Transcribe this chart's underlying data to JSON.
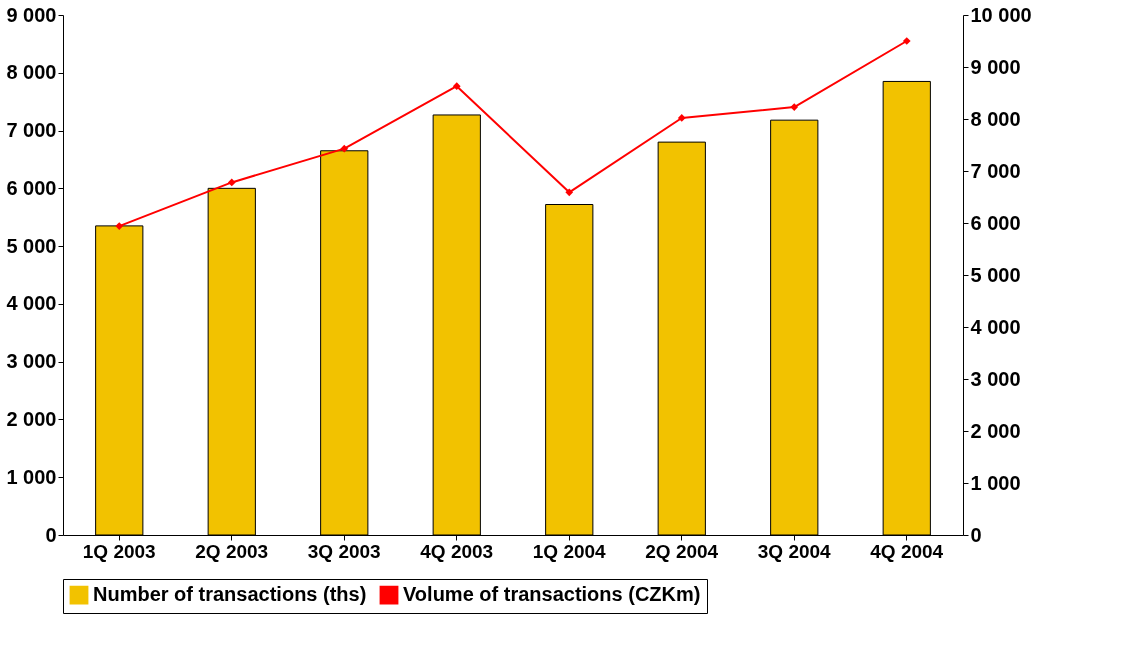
{
  "chart_data": {
    "type": "bar",
    "categories": [
      "1Q 2003",
      "2Q 2003",
      "3Q 2003",
      "4Q 2003",
      "1Q 2004",
      "2Q 2004",
      "3Q 2004",
      "4Q 2004"
    ],
    "series": [
      {
        "name": "Number of transactions (ths)",
        "color": "#f2c200",
        "values": [
          5350,
          6000,
          6650,
          7270,
          5720,
          6800,
          7180,
          7850
        ]
      },
      {
        "name": "Volume of transactions (CZKm)",
        "type": "line",
        "axis": "y2",
        "color": "#ff0000",
        "marker": "diamond",
        "values": [
          5940,
          6780,
          7430,
          8630,
          6590,
          8020,
          8230,
          9500
        ]
      }
    ],
    "ylim": [
      0,
      9000
    ],
    "yticks": [
      0,
      1000,
      2000,
      3000,
      4000,
      5000,
      6000,
      7000,
      8000,
      9000
    ],
    "y2lim": [
      0,
      10000
    ],
    "y2ticks": [
      0,
      1000,
      2000,
      3000,
      4000,
      5000,
      6000,
      7000,
      8000,
      9000,
      10000
    ],
    "grid": false,
    "legend": "bottom"
  }
}
